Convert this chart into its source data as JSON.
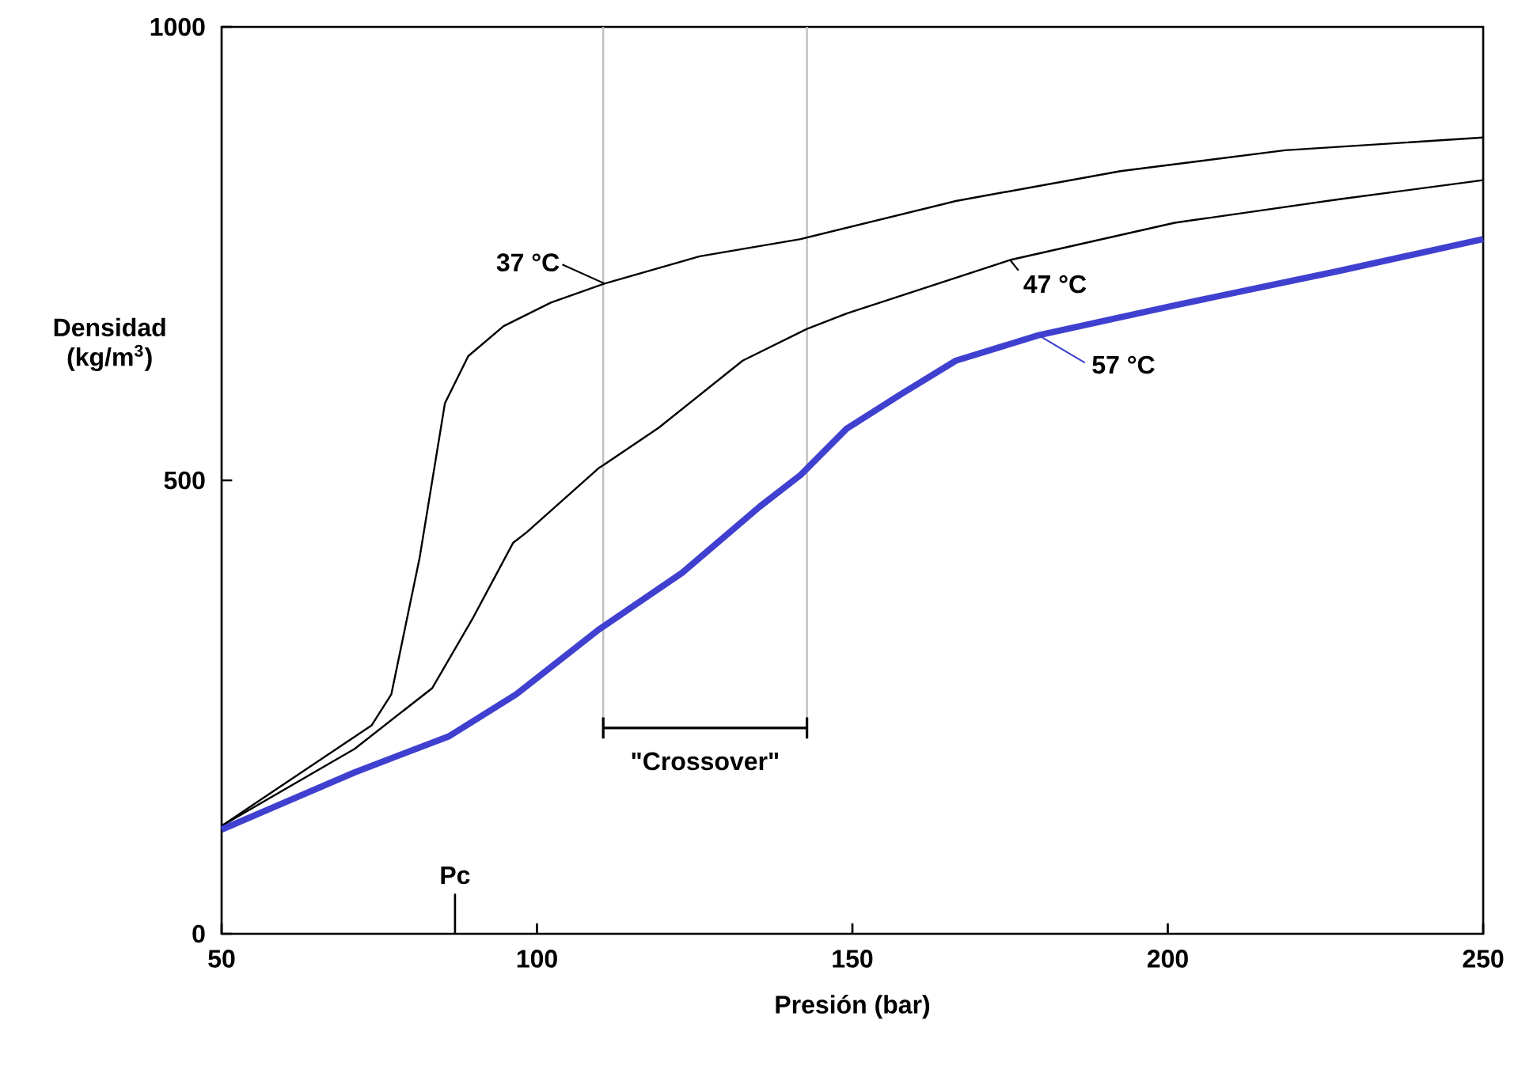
{
  "chart_data": {
    "type": "line",
    "xlabel": "Presión (bar)",
    "ylabel": "Densidad (kg/m$^{3}$)",
    "xlim": [
      50,
      250
    ],
    "ylim": [
      0,
      1000
    ],
    "xticks": [
      50,
      100,
      150,
      200,
      250
    ],
    "yticks": [
      0,
      500,
      1000
    ],
    "marker": "none",
    "line_style": "solid",
    "series": [
      {
        "name": "37 °C",
        "color": "#000000",
        "x": [
          50,
          73.8,
          76.9,
          81.4,
          85.4,
          89.1,
          94.7,
          102.2,
          110.7,
          125.8,
          141.8,
          166.4,
          192.5,
          218.6,
          250
        ],
        "values": [
          119,
          230,
          264,
          415,
          585,
          637,
          670,
          696,
          717,
          747,
          766,
          808,
          841,
          864,
          878
        ]
      },
      {
        "name": "47 °C",
        "color": "#000000",
        "x": [
          50,
          71.1,
          83.4,
          89.9,
          96.2,
          98.4,
          109.7,
          119.3,
          132.6,
          142.8,
          149.1,
          175,
          201.1,
          227.2,
          250
        ],
        "values": [
          119,
          204,
          271,
          349,
          431,
          443,
          513,
          558,
          632,
          667,
          684,
          743,
          784,
          810,
          831
        ]
      },
      {
        "name": "57 °C",
        "color": "#4040d0",
        "x": [
          50,
          71.1,
          86.1,
          96.7,
          109.7,
          123,
          135.3,
          141.8,
          149.1,
          157.7,
          166.4,
          179.5,
          201.1,
          227.2,
          250
        ],
        "values": [
          115,
          178,
          218,
          264,
          335,
          398,
          471,
          506,
          557,
          595,
          632,
          660,
          693,
          731,
          766
        ]
      }
    ],
    "ref_lines": [
      {
        "axis": "x",
        "value": 110.5,
        "color": "#c0c0c0"
      },
      {
        "axis": "x",
        "value": 142.8,
        "color": "#c0c0c0"
      },
      {
        "axis": "x",
        "value": 87,
        "label": "Pc",
        "color": "#000000"
      }
    ],
    "annotations": [
      "\"Crossover\""
    ]
  }
}
